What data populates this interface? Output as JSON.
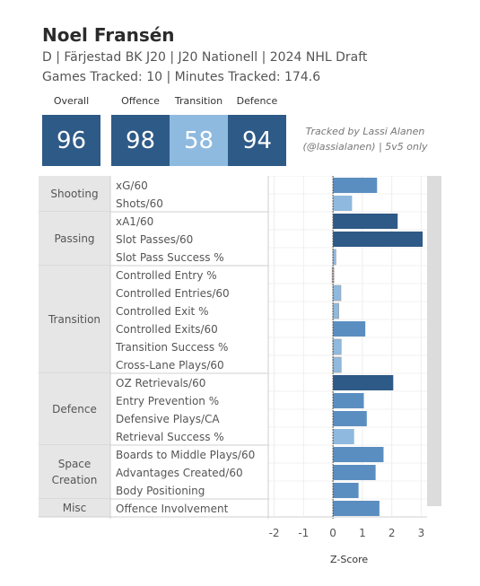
{
  "player": {
    "name": "Noel Fransén",
    "line1": "D | Färjestad BK J20 | J20 Nationell | 2024 NHL Draft",
    "line2": "Games Tracked: 10 | Minutes Tracked: 174.6"
  },
  "scores": [
    {
      "label": "Overall",
      "value": "96",
      "color": "#2e5a87"
    },
    {
      "label": "Offence",
      "value": "98",
      "color": "#2e5a87"
    },
    {
      "label": "Transition",
      "value": "58",
      "color": "#8fbadf"
    },
    {
      "label": "Defence",
      "value": "94",
      "color": "#2e5a87"
    }
  ],
  "note": {
    "line1": "Tracked by Lassi Alanen",
    "line2": "(@lassialanen) | 5v5 only"
  },
  "chart_data": {
    "type": "bar",
    "orientation": "horizontal",
    "xlabel": "Z-Score",
    "xlim": [
      -2.2,
      3.2
    ],
    "xticks": [
      -2,
      -1,
      0,
      1,
      2,
      3
    ],
    "grid": true,
    "colors": {
      "strong_positive": "#2e5a87",
      "positive": "#5b8ec0",
      "light_positive": "#8fb9de",
      "negative": "#e8c4c0"
    },
    "groups": [
      {
        "name": [
          "Shooting"
        ],
        "metrics": [
          {
            "label": "xG/60",
            "value": 1.5
          },
          {
            "label": "Shots/60",
            "value": 0.65
          }
        ]
      },
      {
        "name": [
          "Passing"
        ],
        "metrics": [
          {
            "label": "xA1/60",
            "value": 2.2
          },
          {
            "label": "Slot Passes/60",
            "value": 3.05
          },
          {
            "label": "Slot Pass Success %",
            "value": 0.1
          }
        ]
      },
      {
        "name": [
          "Transition"
        ],
        "metrics": [
          {
            "label": "Controlled Entry %",
            "value": -0.03
          },
          {
            "label": "Controlled Entries/60",
            "value": 0.27
          },
          {
            "label": "Controlled Exit %",
            "value": 0.2
          },
          {
            "label": "Controlled Exits/60",
            "value": 1.1
          },
          {
            "label": "Transition Success %",
            "value": 0.28
          },
          {
            "label": "Cross-Lane Plays/60",
            "value": 0.28
          }
        ]
      },
      {
        "name": [
          "Defence"
        ],
        "metrics": [
          {
            "label": "OZ Retrievals/60",
            "value": 2.05
          },
          {
            "label": "Entry Prevention %",
            "value": 1.05
          },
          {
            "label": "Defensive Plays/CA",
            "value": 1.15
          },
          {
            "label": "Retrieval Success %",
            "value": 0.72
          }
        ]
      },
      {
        "name": [
          "Space",
          "Creation"
        ],
        "metrics": [
          {
            "label": "Boards to Middle Plays/60",
            "value": 1.72
          },
          {
            "label": "Advantages Created/60",
            "value": 1.45
          },
          {
            "label": "Body Positioning",
            "value": 0.87
          }
        ]
      },
      {
        "name": [
          "Misc"
        ],
        "metrics": [
          {
            "label": "Offence Involvement",
            "value": 1.58
          }
        ]
      }
    ]
  }
}
